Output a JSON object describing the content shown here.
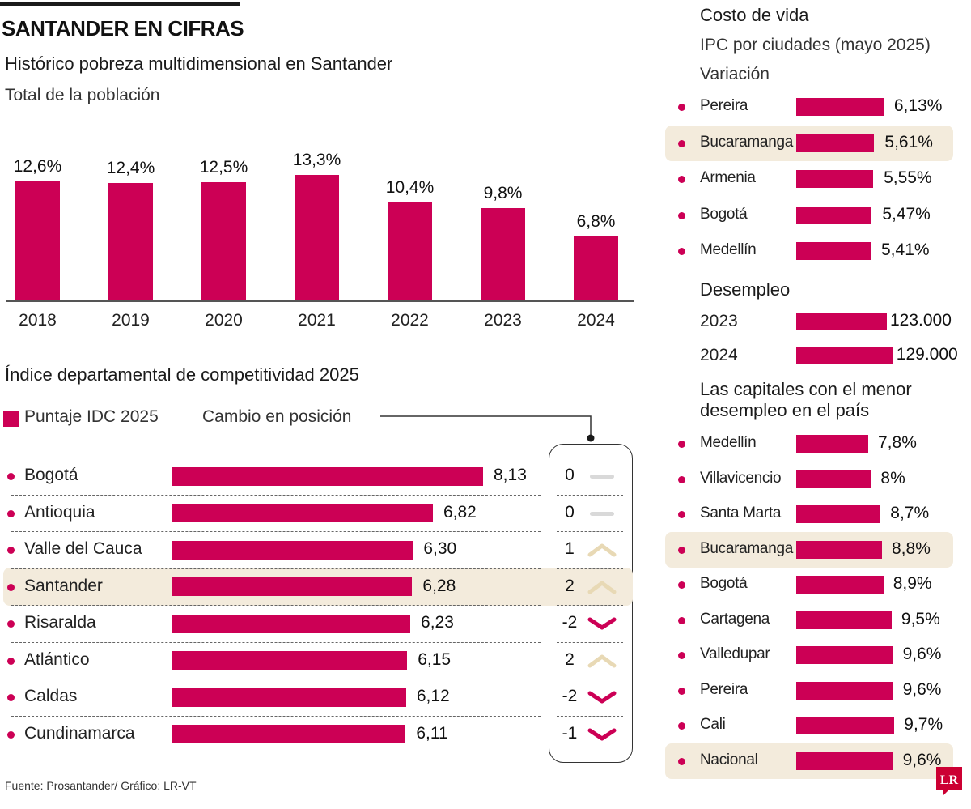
{
  "header": {
    "title": "SANTANDER EN CIFRAS"
  },
  "colors": {
    "bar": "#cc0055",
    "highlight": "#f3ebdc",
    "arrow_up": "#e8d9b5",
    "arrow_down": "#cc0055",
    "flat": "#d9d9d9"
  },
  "chart_data": [
    {
      "type": "bar",
      "title": "Histórico pobreza multidimensional en Santander",
      "subtitle": "Total de la población",
      "categories": [
        "2018",
        "2019",
        "2020",
        "2021",
        "2022",
        "2023",
        "2024"
      ],
      "values": [
        12.6,
        12.4,
        12.5,
        13.3,
        10.4,
        9.8,
        6.8
      ],
      "labels": [
        "12,6%",
        "12,4%",
        "12,5%",
        "13,3%",
        "10,4%",
        "9,8%",
        "6,8%"
      ],
      "ylim": [
        0,
        13.3
      ]
    },
    {
      "type": "bar",
      "orientation": "horizontal",
      "title": "Índice departamental de competitividad 2025",
      "legend": [
        "Puntaje IDC 2025",
        "Cambio en posición"
      ],
      "categories": [
        "Bogotá",
        "Antioquia",
        "Valle del Cauca",
        "Santander",
        "Risaralda",
        "Atlántico",
        "Caldas",
        "Cundinamarca"
      ],
      "values": [
        8.13,
        6.82,
        6.3,
        6.28,
        6.23,
        6.15,
        6.12,
        6.11
      ],
      "labels": [
        "8,13",
        "6,82",
        "6,30",
        "6,28",
        "6,23",
        "6,15",
        "6,12",
        "6,11"
      ],
      "position_change": [
        "0",
        "0",
        "1",
        "2",
        "-2",
        "2",
        "-2",
        "-1"
      ],
      "trend": [
        "flat",
        "flat",
        "up",
        "up",
        "down",
        "up",
        "down",
        "down"
      ],
      "highlight": "Santander"
    },
    {
      "type": "bar",
      "orientation": "horizontal",
      "title": "Costo de vida",
      "subtitle": "IPC por ciudades (mayo 2025)",
      "note": "Variación",
      "categories": [
        "Pereira",
        "Bucaramanga",
        "Armenia",
        "Bogotá",
        "Medellín"
      ],
      "values": [
        6.13,
        5.61,
        5.55,
        5.47,
        5.41
      ],
      "labels": [
        "6,13%",
        "5,61%",
        "5,55%",
        "5,47%",
        "5,41%"
      ],
      "highlight": "Bucaramanga"
    },
    {
      "type": "bar",
      "orientation": "horizontal",
      "title": "Desempleo",
      "categories": [
        "2023",
        "2024"
      ],
      "values": [
        123000,
        129000
      ],
      "labels": [
        "123.000",
        "129.000"
      ]
    },
    {
      "type": "bar",
      "orientation": "horizontal",
      "title": "Las capitales con el menor desempleo en el país",
      "categories": [
        "Medellín",
        "Villavicencio",
        "Santa Marta",
        "Bucaramanga",
        "Bogotá",
        "Cartagena",
        "Valledupar",
        "Pereira",
        "Cali",
        "Nacional"
      ],
      "values": [
        7.8,
        8,
        8.7,
        8.8,
        8.9,
        9.5,
        9.6,
        9.6,
        9.7,
        9.6
      ],
      "labels": [
        "7,8%",
        "8%",
        "8,7%",
        "8,8%",
        "8,9%",
        "9,5%",
        "9,6%",
        "9,6%",
        "9,7%",
        "9,6%"
      ],
      "highlight": [
        "Bucaramanga",
        "Nacional"
      ]
    }
  ],
  "footer": {
    "source": "Fuente: Prosantander/ Gráfico: LR-VT",
    "logo": "LR"
  }
}
